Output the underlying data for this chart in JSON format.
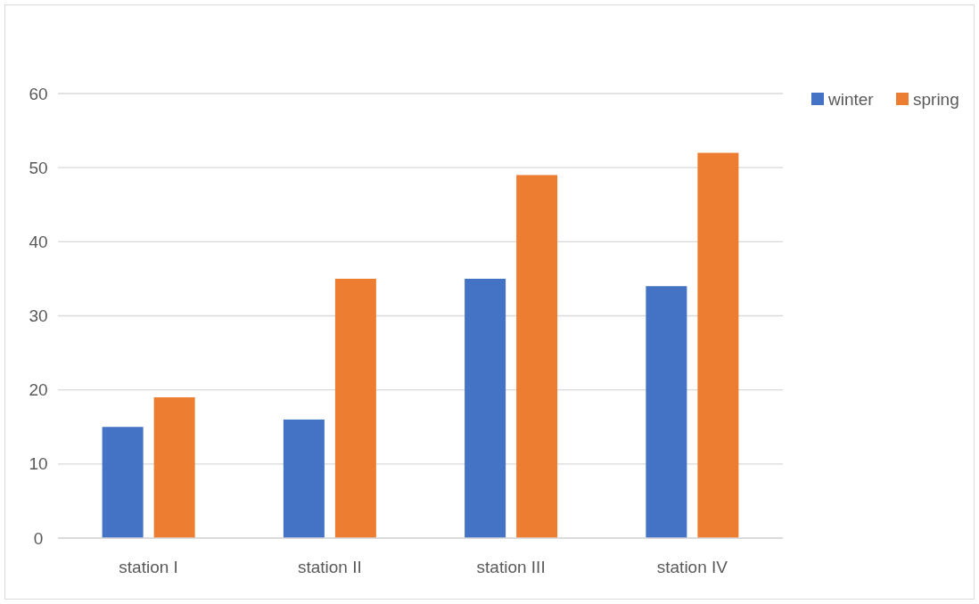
{
  "chart_data": {
    "type": "bar",
    "categories": [
      "station I",
      "station II",
      "station III",
      "station IV"
    ],
    "series": [
      {
        "name": "winter",
        "color": "#4472c4",
        "values": [
          15,
          16,
          35,
          34
        ]
      },
      {
        "name": "spring",
        "color": "#ed7d31",
        "values": [
          19,
          35,
          49,
          52
        ]
      }
    ],
    "ylim": [
      0,
      60
    ],
    "yticks": [
      0,
      10,
      20,
      30,
      40,
      50,
      60
    ],
    "grid": "y",
    "legend": "top right"
  }
}
